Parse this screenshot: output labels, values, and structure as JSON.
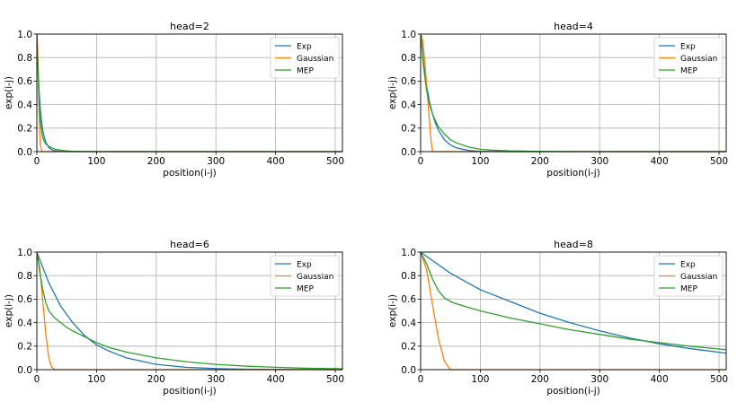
{
  "chart_data": [
    {
      "type": "line",
      "title": "head=2",
      "xlabel": "position(i-j)",
      "ylabel": "exp(i-j)",
      "xlim": [
        0,
        512
      ],
      "ylim": [
        0,
        1.0
      ],
      "xticks": [
        0,
        100,
        200,
        300,
        400,
        500
      ],
      "yticks": [
        0.0,
        0.2,
        0.4,
        0.6,
        0.8,
        1.0
      ],
      "grid": true,
      "legend": "top-right",
      "series": [
        {
          "name": "Exp",
          "color": "#1f77b4",
          "x": [
            0,
            1,
            2,
            3,
            4,
            5,
            6,
            8,
            10,
            12,
            15,
            20,
            25,
            30,
            40,
            60,
            100,
            200,
            300,
            400,
            512
          ],
          "y": [
            1.0,
            0.84,
            0.71,
            0.6,
            0.5,
            0.42,
            0.35,
            0.25,
            0.18,
            0.13,
            0.08,
            0.035,
            0.015,
            0.007,
            0.001,
            0.0,
            0.0,
            0.0,
            0.0,
            0.0,
            0.0
          ]
        },
        {
          "name": "Gaussian",
          "color": "#ff7f0e",
          "x": [
            0,
            1,
            2,
            3,
            4,
            5,
            6,
            8,
            10,
            15,
            512
          ],
          "y": [
            1.0,
            0.93,
            0.75,
            0.52,
            0.3,
            0.15,
            0.06,
            0.006,
            0.0,
            0.0,
            0.0
          ]
        },
        {
          "name": "MEP",
          "color": "#2ca02c",
          "x": [
            0,
            1,
            2,
            3,
            4,
            5,
            6,
            8,
            10,
            12,
            15,
            20,
            25,
            30,
            40,
            50,
            60,
            80,
            100,
            200,
            300,
            400,
            512
          ],
          "y": [
            1.0,
            0.84,
            0.67,
            0.52,
            0.4,
            0.31,
            0.25,
            0.17,
            0.12,
            0.09,
            0.065,
            0.045,
            0.032,
            0.022,
            0.012,
            0.006,
            0.003,
            0.001,
            0.0,
            0.0,
            0.0,
            0.0,
            0.0
          ]
        }
      ]
    },
    {
      "type": "line",
      "title": "head=4",
      "xlabel": "position(i-j)",
      "ylabel": "exp(i-j)",
      "xlim": [
        0,
        512
      ],
      "ylim": [
        0,
        1.0
      ],
      "xticks": [
        0,
        100,
        200,
        300,
        400,
        500
      ],
      "yticks": [
        0.0,
        0.2,
        0.4,
        0.6,
        0.8,
        1.0
      ],
      "grid": true,
      "legend": "top-right",
      "series": [
        {
          "name": "Exp",
          "color": "#1f77b4",
          "x": [
            0,
            5,
            10,
            15,
            20,
            25,
            30,
            40,
            50,
            60,
            80,
            100,
            120,
            150,
            200,
            250,
            300,
            400,
            512
          ],
          "y": [
            1.0,
            0.75,
            0.56,
            0.42,
            0.32,
            0.24,
            0.18,
            0.1,
            0.056,
            0.032,
            0.01,
            0.003,
            0.001,
            0.0,
            0.0,
            0.0,
            0.0,
            0.0,
            0.0
          ]
        },
        {
          "name": "Gaussian",
          "color": "#ff7f0e",
          "x": [
            0,
            2,
            4,
            6,
            8,
            10,
            12,
            14,
            16,
            18,
            20,
            512
          ],
          "y": [
            1.0,
            0.98,
            0.92,
            0.82,
            0.7,
            0.57,
            0.44,
            0.31,
            0.18,
            0.07,
            0.0,
            0.0
          ]
        },
        {
          "name": "MEP",
          "color": "#2ca02c",
          "x": [
            0,
            5,
            10,
            15,
            20,
            25,
            30,
            40,
            50,
            60,
            80,
            100,
            120,
            150,
            200,
            250,
            300,
            400,
            512
          ],
          "y": [
            1.0,
            0.72,
            0.52,
            0.4,
            0.32,
            0.26,
            0.21,
            0.15,
            0.1,
            0.075,
            0.04,
            0.02,
            0.012,
            0.006,
            0.002,
            0.001,
            0.0,
            0.0,
            0.0
          ]
        }
      ]
    },
    {
      "type": "line",
      "title": "head=6",
      "xlabel": "position(i-j)",
      "ylabel": "exp(i-j)",
      "xlim": [
        0,
        512
      ],
      "ylim": [
        0,
        1.0
      ],
      "xticks": [
        0,
        100,
        200,
        300,
        400,
        500
      ],
      "yticks": [
        0.0,
        0.2,
        0.4,
        0.6,
        0.8,
        1.0
      ],
      "grid": true,
      "legend": "top-right",
      "series": [
        {
          "name": "Exp",
          "color": "#1f77b4",
          "x": [
            0,
            20,
            40,
            60,
            80,
            100,
            120,
            150,
            200,
            250,
            300,
            350,
            400,
            450,
            512
          ],
          "y": [
            1.0,
            0.74,
            0.54,
            0.4,
            0.29,
            0.21,
            0.16,
            0.1,
            0.045,
            0.02,
            0.009,
            0.004,
            0.002,
            0.001,
            0.0
          ]
        },
        {
          "name": "Gaussian",
          "color": "#ff7f0e",
          "x": [
            0,
            5,
            10,
            15,
            20,
            25,
            30,
            512
          ],
          "y": [
            1.0,
            0.86,
            0.58,
            0.3,
            0.1,
            0.02,
            0.0,
            0.0
          ]
        },
        {
          "name": "MEP",
          "color": "#2ca02c",
          "x": [
            0,
            5,
            10,
            15,
            20,
            30,
            40,
            50,
            60,
            80,
            100,
            120,
            150,
            200,
            250,
            300,
            350,
            400,
            450,
            512
          ],
          "y": [
            1.0,
            0.83,
            0.68,
            0.57,
            0.5,
            0.44,
            0.4,
            0.36,
            0.33,
            0.28,
            0.23,
            0.19,
            0.15,
            0.1,
            0.068,
            0.045,
            0.03,
            0.02,
            0.012,
            0.007
          ]
        }
      ]
    },
    {
      "type": "line",
      "title": "head=8",
      "xlabel": "position(i-j)",
      "ylabel": "exp(i-j)",
      "xlim": [
        0,
        512
      ],
      "ylim": [
        0,
        1.0
      ],
      "xticks": [
        0,
        100,
        200,
        300,
        400,
        500
      ],
      "yticks": [
        0.0,
        0.2,
        0.4,
        0.6,
        0.8,
        1.0
      ],
      "grid": true,
      "legend": "top-right",
      "series": [
        {
          "name": "Exp",
          "color": "#1f77b4",
          "x": [
            0,
            50,
            100,
            150,
            200,
            250,
            300,
            350,
            400,
            450,
            512
          ],
          "y": [
            1.0,
            0.82,
            0.68,
            0.58,
            0.48,
            0.4,
            0.33,
            0.27,
            0.22,
            0.18,
            0.14
          ]
        },
        {
          "name": "Gaussian",
          "color": "#ff7f0e",
          "x": [
            0,
            10,
            20,
            30,
            40,
            50,
            512
          ],
          "y": [
            1.0,
            0.85,
            0.55,
            0.26,
            0.07,
            0.0,
            0.0
          ]
        },
        {
          "name": "MEP",
          "color": "#2ca02c",
          "x": [
            0,
            10,
            20,
            30,
            40,
            50,
            60,
            80,
            100,
            150,
            200,
            250,
            300,
            350,
            400,
            450,
            512
          ],
          "y": [
            1.0,
            0.9,
            0.77,
            0.67,
            0.61,
            0.58,
            0.56,
            0.53,
            0.5,
            0.44,
            0.39,
            0.34,
            0.3,
            0.26,
            0.23,
            0.2,
            0.17
          ]
        }
      ]
    }
  ]
}
